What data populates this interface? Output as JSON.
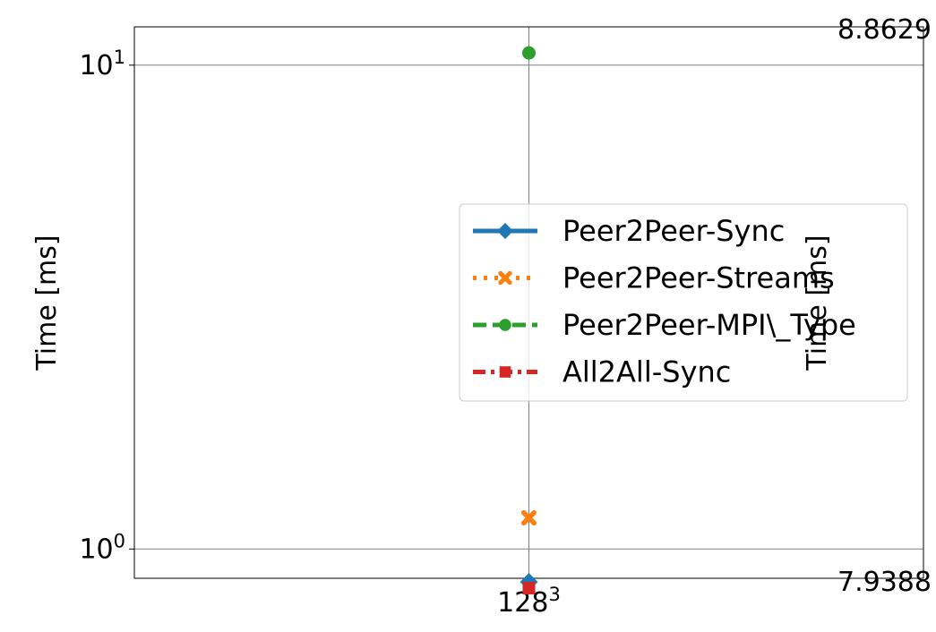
{
  "chart_data": {
    "type": "scatter",
    "title": "",
    "x_ticks": [
      {
        "base": "128",
        "exp": "3"
      }
    ],
    "ylabel_left": "Time [ms]",
    "ylabel_right": "Time [ms]",
    "y_scale": "log",
    "ylim": [
      0.87,
      12
    ],
    "y_ticks_left": [
      {
        "value": 1,
        "base": "10",
        "exp": "0"
      },
      {
        "value": 10,
        "base": "10",
        "exp": "1"
      }
    ],
    "y_ticks_right": {
      "top": "8.8629",
      "bottom": "7.9388"
    },
    "grid": true,
    "legend_position": "center-right",
    "series": [
      {
        "name": "Peer2Peer-Sync",
        "color": "#1f77b4",
        "marker": "diamond",
        "line_style": "solid",
        "values": [
          0.855
        ]
      },
      {
        "name": "Peer2Peer-Streams",
        "color": "#ff7f0e",
        "marker": "x-filled",
        "line_style": "dotted",
        "values": [
          1.16
        ]
      },
      {
        "name": "Peer2Peer-MPI\\_Type",
        "color": "#2ca02c",
        "marker": "circle",
        "line_style": "dashed",
        "values": [
          10.6
        ]
      },
      {
        "name": "All2All-Sync",
        "color": "#d62728",
        "marker": "square",
        "line_style": "dashdot",
        "values": [
          0.83
        ]
      }
    ]
  }
}
